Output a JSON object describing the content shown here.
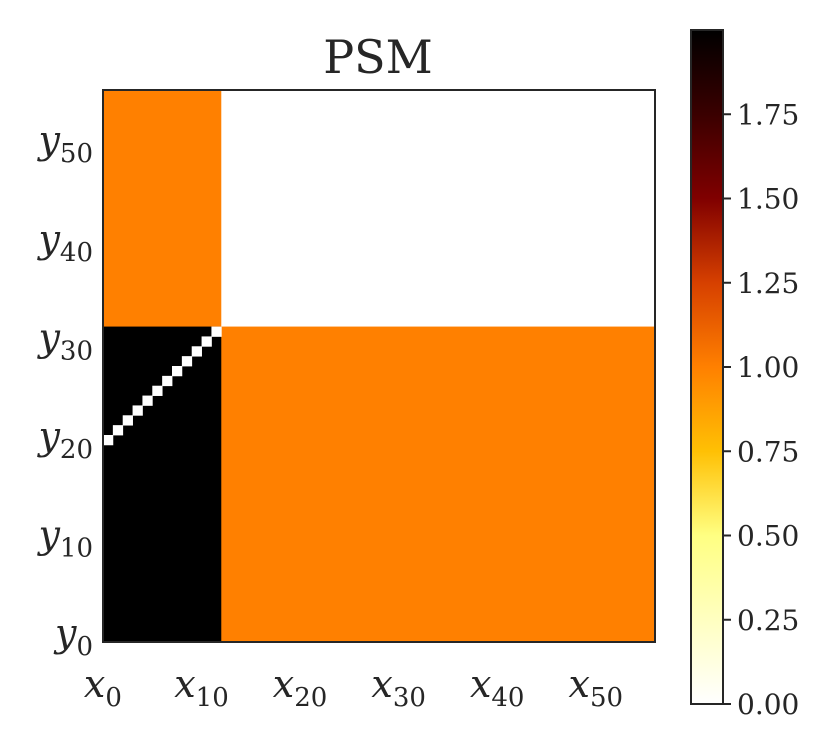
{
  "chart_data": {
    "type": "heatmap",
    "title": "PSM",
    "xlabel": "",
    "ylabel": "",
    "grid_size": [
      56,
      56
    ],
    "x_range": [
      0,
      55
    ],
    "y_range": [
      0,
      55
    ],
    "x_ticks": [
      {
        "base": "x",
        "sub": "0",
        "value": 0
      },
      {
        "base": "x",
        "sub": "10",
        "value": 10
      },
      {
        "base": "x",
        "sub": "20",
        "value": 20
      },
      {
        "base": "x",
        "sub": "30",
        "value": 30
      },
      {
        "base": "x",
        "sub": "40",
        "value": 40
      },
      {
        "base": "x",
        "sub": "50",
        "value": 50
      }
    ],
    "y_ticks": [
      {
        "base": "y",
        "sub": "0",
        "value": 0
      },
      {
        "base": "y",
        "sub": "10",
        "value": 10
      },
      {
        "base": "y",
        "sub": "20",
        "value": 20
      },
      {
        "base": "y",
        "sub": "30",
        "value": 30
      },
      {
        "base": "y",
        "sub": "40",
        "value": 40
      },
      {
        "base": "y",
        "sub": "50",
        "value": 50
      }
    ],
    "regions": [
      {
        "x": [
          0,
          11
        ],
        "y": [
          32,
          55
        ],
        "value": 1.0
      },
      {
        "x": [
          12,
          55
        ],
        "y": [
          32,
          55
        ],
        "value": 0.0
      },
      {
        "x": [
          0,
          11
        ],
        "y": [
          0,
          31
        ],
        "value": 2.0
      },
      {
        "x": [
          12,
          55
        ],
        "y": [
          0,
          31
        ],
        "value": 1.0
      }
    ],
    "diagonal": {
      "x_start": 0,
      "y_start": 20,
      "length": 12,
      "value": 0.0
    },
    "colorbar": {
      "colormap": "afmhot_r",
      "range": [
        0.0,
        2.0
      ],
      "ticks": [
        "0.00",
        "0.25",
        "0.50",
        "0.75",
        "1.00",
        "1.25",
        "1.50",
        "1.75"
      ],
      "tick_values": [
        0.0,
        0.25,
        0.5,
        0.75,
        1.0,
        1.25,
        1.5,
        1.75
      ],
      "stops": [
        {
          "value": 0.0,
          "color": "#ffffff"
        },
        {
          "value": 0.5,
          "color": "#ffff82"
        },
        {
          "value": 0.75,
          "color": "#ffc004"
        },
        {
          "value": 1.0,
          "color": "#ff8000"
        },
        {
          "value": 1.25,
          "color": "#d64000"
        },
        {
          "value": 1.5,
          "color": "#800000"
        },
        {
          "value": 1.75,
          "color": "#3a0000"
        },
        {
          "value": 2.0,
          "color": "#000000"
        }
      ]
    }
  }
}
